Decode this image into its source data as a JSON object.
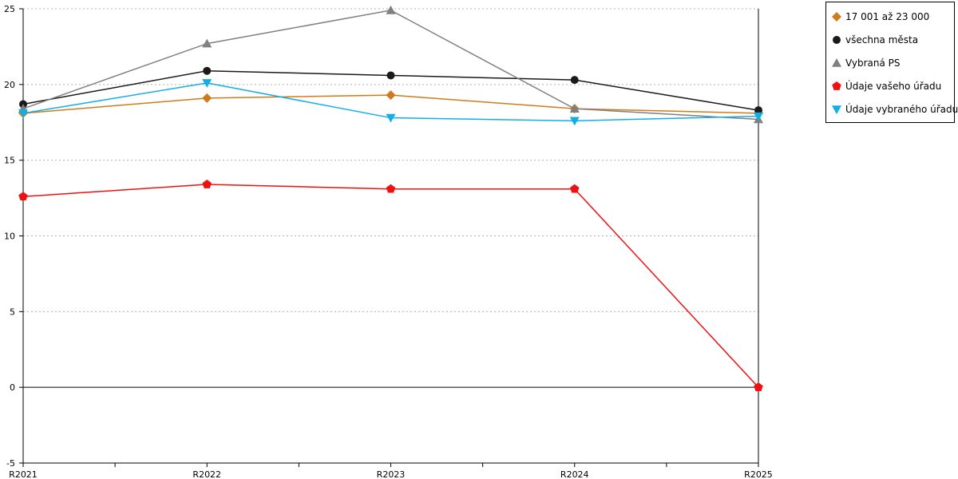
{
  "chart_data": {
    "type": "line",
    "categories": [
      "R2021",
      "R2022",
      "R2023",
      "R2024",
      "R2025"
    ],
    "ylim": [
      -5,
      25
    ],
    "yticks": [
      -5,
      0,
      5,
      10,
      15,
      20,
      25
    ],
    "grid": true,
    "legend_position": "top-right",
    "series": [
      {
        "name": "17 001 až 23 000",
        "color": "#d07a1e",
        "marker": "diamond",
        "values": [
          18.1,
          19.1,
          19.3,
          18.4,
          18.1
        ]
      },
      {
        "name": "všechna města",
        "color": "#1a1a1a",
        "marker": "circle",
        "values": [
          18.7,
          20.9,
          20.6,
          20.3,
          18.3
        ]
      },
      {
        "name": "Vybraná PS",
        "color": "#808080",
        "marker": "triangle-up",
        "values": [
          18.4,
          22.7,
          24.9,
          18.4,
          17.7
        ]
      },
      {
        "name": "Údaje vašeho úřadu",
        "color": "#ee1111",
        "marker": "pentagon",
        "values": [
          12.6,
          13.4,
          13.1,
          13.1,
          0
        ]
      },
      {
        "name": "Údaje vybraného úřadu",
        "color": "#13aee6",
        "marker": "triangle-down",
        "values": [
          18.1,
          20.1,
          17.8,
          17.6,
          17.9
        ]
      }
    ]
  }
}
